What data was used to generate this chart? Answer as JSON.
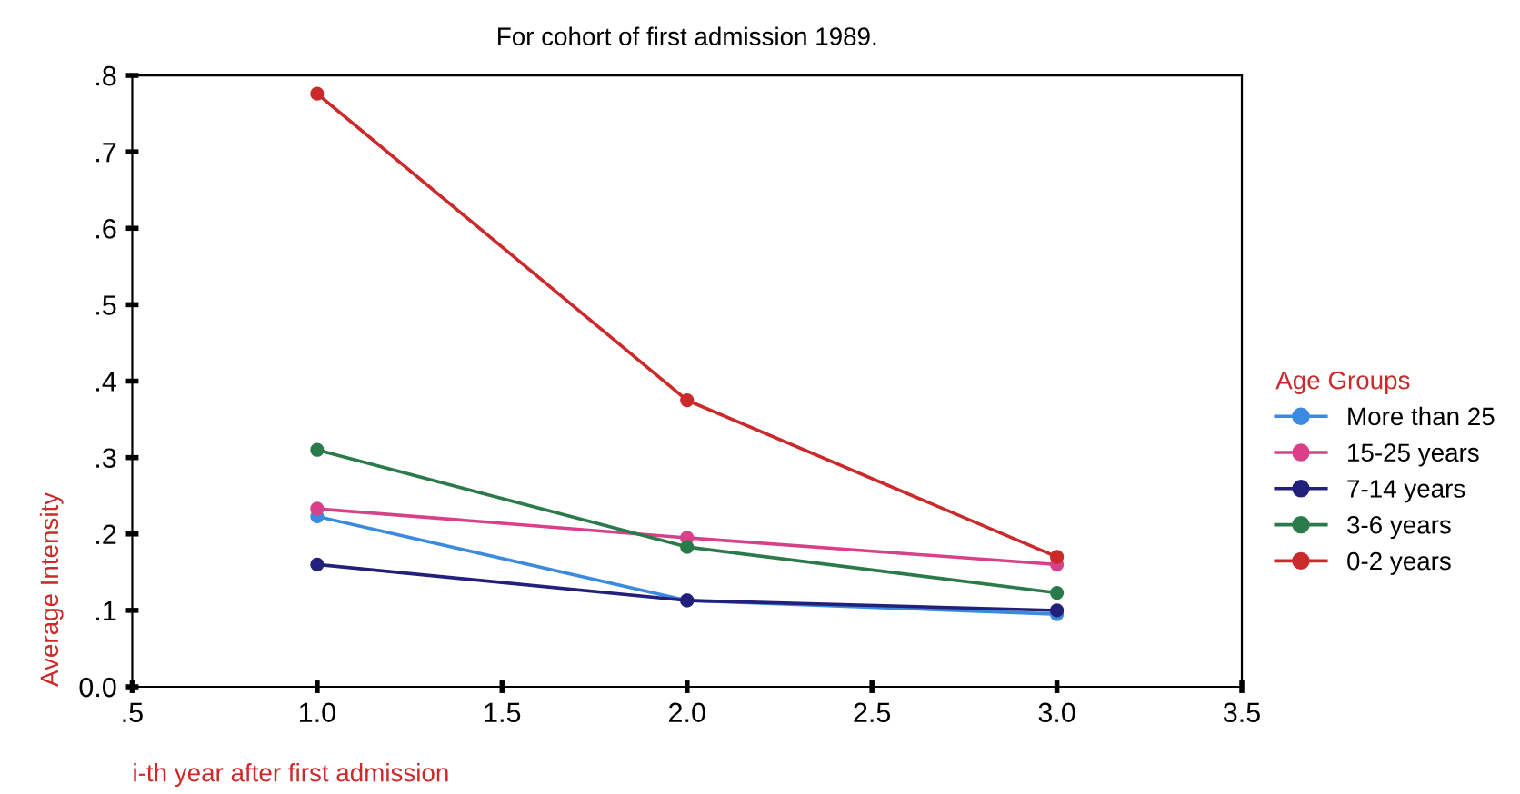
{
  "chart_data": {
    "type": "line",
    "title": "For cohort of first admission 1989.",
    "xlabel": "i-th year after first admission",
    "ylabel": "Average Intensity",
    "legend_title": "Age Groups",
    "x": [
      1.0,
      2.0,
      3.0
    ],
    "series": [
      {
        "name": "More than 25",
        "color": "#3a8ae0",
        "values": [
          0.223,
          0.113,
          0.095
        ]
      },
      {
        "name": "15-25 years",
        "color": "#d8408a",
        "values": [
          0.233,
          0.195,
          0.16
        ]
      },
      {
        "name": "7-14 years",
        "color": "#22207a",
        "values": [
          0.16,
          0.113,
          0.1
        ]
      },
      {
        "name": "3-6 years",
        "color": "#2a7a4a",
        "values": [
          0.31,
          0.183,
          0.123
        ]
      },
      {
        "name": "0-2 years",
        "color": "#cc2a2a",
        "values": [
          0.776,
          0.375,
          0.17
        ]
      }
    ],
    "xlim": [
      0.5,
      3.5
    ],
    "ylim": [
      0,
      0.8
    ],
    "xticks": [
      {
        "value": 0.5,
        "label": ".5"
      },
      {
        "value": 1.0,
        "label": "1.0"
      },
      {
        "value": 1.5,
        "label": "1.5"
      },
      {
        "value": 2.0,
        "label": "2.0"
      },
      {
        "value": 2.5,
        "label": "2.5"
      },
      {
        "value": 3.0,
        "label": "3.0"
      },
      {
        "value": 3.5,
        "label": "3.5"
      }
    ],
    "yticks": [
      {
        "value": 0,
        "label": "0.0"
      },
      {
        "value": 0.1,
        "label": ".1"
      },
      {
        "value": 0.2,
        "label": ".2"
      },
      {
        "value": 0.3,
        "label": ".3"
      },
      {
        "value": 0.4,
        "label": ".4"
      },
      {
        "value": 0.5,
        "label": ".5"
      },
      {
        "value": 0.6,
        "label": ".6"
      },
      {
        "value": 0.7,
        "label": ".7"
      },
      {
        "value": 0.8,
        "label": ".8"
      }
    ],
    "marker": "circle",
    "line_style": "solid",
    "grid": false,
    "legend": "right"
  }
}
